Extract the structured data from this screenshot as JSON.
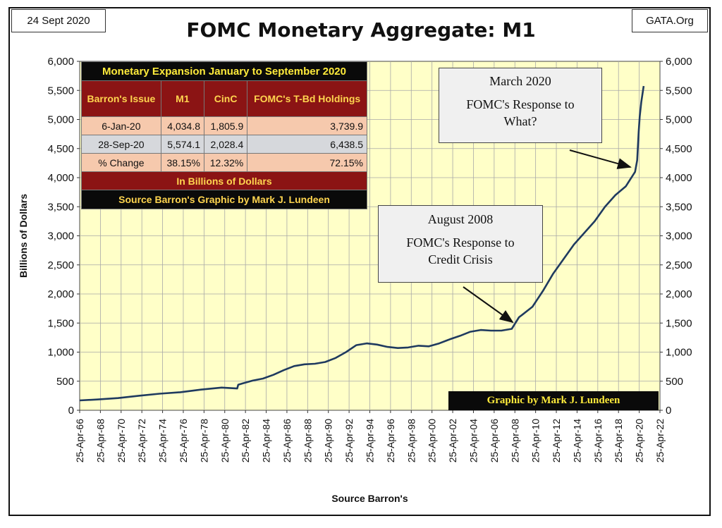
{
  "header": {
    "date": "24 Sept 2020",
    "site": "GATA.Org",
    "title": "FOMC Monetary Aggregate: M1"
  },
  "info_table": {
    "caption": "Monetary Expansion January to September 2020",
    "columns": [
      "Barron's Issue",
      "M1",
      "CinC",
      "FOMC's T-Bd Holdings"
    ],
    "rows": [
      [
        "6-Jan-20",
        "4,034.8",
        "1,805.9",
        "3,739.9"
      ],
      [
        "28-Sep-20",
        "5,574.1",
        "2,028.4",
        "6,438.5"
      ],
      [
        "% Change",
        "38.15%",
        "12.32%",
        "72.15%"
      ]
    ],
    "note": "In Billions of Dollars",
    "source": "Source Barron's   Graphic by Mark J. Lundeen"
  },
  "callouts": {
    "march": {
      "line1": "March 2020",
      "line2": "FOMC's Response to",
      "line3": "What?"
    },
    "august": {
      "line1": "August 2008",
      "line2": "FOMC's Response to",
      "line3": "Credit Crisis"
    }
  },
  "credit": "Graphic by Mark J. Lundeen",
  "colors": {
    "plot_bg": "#ffffc8",
    "line": "#1f3a5f",
    "grid": "#a8a8a8",
    "table_header": "#8b1414",
    "table_text": "#ffd54f"
  },
  "chart_data": {
    "type": "line",
    "title": "FOMC Monetary Aggregate: M1",
    "xlabel": "Source Barron's",
    "ylabel": "Billions  of  Dollars",
    "ylim": [
      0,
      6000
    ],
    "yticks": [
      "0",
      "500",
      "1,000",
      "1,500",
      "2,000",
      "2,500",
      "3,000",
      "3,500",
      "4,000",
      "4,500",
      "5,000",
      "5,500",
      "6,000"
    ],
    "xticks": [
      "25-Apr-66",
      "25-Apr-68",
      "25-Apr-70",
      "25-Apr-72",
      "25-Apr-74",
      "25-Apr-76",
      "25-Apr-78",
      "25-Apr-80",
      "25-Apr-82",
      "25-Apr-84",
      "25-Apr-86",
      "25-Apr-88",
      "25-Apr-90",
      "25-Apr-92",
      "25-Apr-94",
      "25-Apr-96",
      "25-Apr-98",
      "25-Apr-00",
      "25-Apr-02",
      "25-Apr-04",
      "25-Apr-06",
      "25-Apr-08",
      "25-Apr-10",
      "25-Apr-12",
      "25-Apr-14",
      "25-Apr-16",
      "25-Apr-18",
      "25-Apr-20",
      "25-Apr-22"
    ],
    "grid": true,
    "series": [
      {
        "x": [
          1966.3,
          1968,
          1970,
          1972,
          1974,
          1976,
          1978,
          1980,
          1981.5,
          1981.6,
          1982,
          1983,
          1984,
          1985,
          1986,
          1987,
          1988,
          1989,
          1990,
          1991,
          1992,
          1993,
          1994,
          1995,
          1996,
          1997,
          1998,
          1999,
          2000,
          2001,
          2002,
          2003,
          2004,
          2005,
          2006,
          2007,
          2008,
          2008.7,
          2009,
          2010,
          2011,
          2012,
          2013,
          2014,
          2015,
          2016,
          2017,
          2018,
          2019,
          2019.9,
          2020.1,
          2020.25,
          2020.35,
          2020.5,
          2020.73
        ],
        "values": [
          170,
          185,
          210,
          250,
          285,
          310,
          355,
          390,
          375,
          440,
          460,
          510,
          545,
          610,
          690,
          760,
          790,
          800,
          830,
          900,
          1000,
          1120,
          1150,
          1130,
          1090,
          1070,
          1080,
          1110,
          1100,
          1150,
          1220,
          1280,
          1350,
          1380,
          1370,
          1370,
          1400,
          1600,
          1640,
          1780,
          2050,
          2350,
          2600,
          2850,
          3050,
          3250,
          3500,
          3700,
          3850,
          4100,
          4300,
          4800,
          5050,
          5300,
          5574
        ]
      }
    ]
  }
}
